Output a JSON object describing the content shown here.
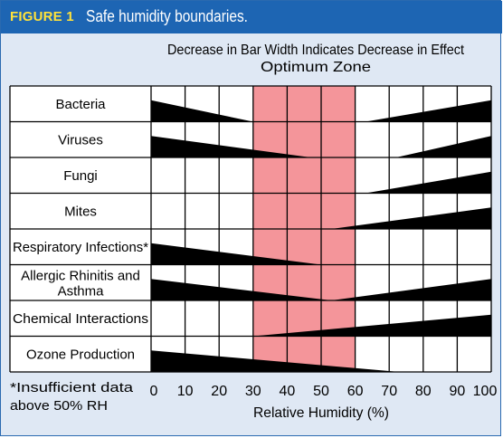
{
  "figure": {
    "label": "FIGURE 1",
    "title": "Safe humidity boundaries."
  },
  "chart_data": {
    "type": "bar",
    "header_lines": [
      "Decrease in Bar Width Indicates Decrease in Effect",
      "Optimum Zone"
    ],
    "xlabel": "Relative Humidity (%)",
    "xlim": [
      0,
      100
    ],
    "xticks": [
      0,
      10,
      20,
      30,
      40,
      50,
      60,
      70,
      80,
      90,
      100
    ],
    "optimum_zone": [
      30,
      60
    ],
    "footnote": [
      "*Insufficient data",
      "above 50% RH"
    ],
    "colors": {
      "bar": "#000000",
      "optimum_zone": "#f4959a",
      "grid": "#000000",
      "title_bar": "#1d65b3",
      "label_highlight": "#ffe23a",
      "background": "#dfe8f4"
    },
    "rows": [
      {
        "label": "Bacteria",
        "segments": [
          {
            "from": 0,
            "to": 30,
            "width_start": 0.6,
            "width_end": 0
          },
          {
            "from": 63,
            "to": 100,
            "width_start": 0,
            "width_end": 0.6
          }
        ]
      },
      {
        "label": "Viruses",
        "segments": [
          {
            "from": 0,
            "to": 47,
            "width_start": 0.6,
            "width_end": 0
          },
          {
            "from": 72,
            "to": 100,
            "width_start": 0,
            "width_end": 0.6
          }
        ]
      },
      {
        "label": "Fungi",
        "segments": [
          {
            "from": 63,
            "to": 100,
            "width_start": 0,
            "width_end": 0.6
          }
        ]
      },
      {
        "label": "Mites",
        "segments": [
          {
            "from": 53,
            "to": 100,
            "width_start": 0,
            "width_end": 0.6
          }
        ]
      },
      {
        "label": "Respiratory Infections*",
        "segments": [
          {
            "from": 0,
            "to": 50,
            "width_start": 0.6,
            "width_end": 0
          }
        ]
      },
      {
        "label": "Allergic Rhinitis and Asthma",
        "segments": [
          {
            "from": 0,
            "to": 53,
            "width_start": 0.6,
            "width_end": 0
          },
          {
            "from": 53,
            "to": 100,
            "width_start": 0,
            "width_end": 0.6
          }
        ]
      },
      {
        "label": "Chemical Interactions",
        "segments": [
          {
            "from": 30,
            "to": 100,
            "width_start": 0,
            "width_end": 0.6
          }
        ]
      },
      {
        "label": "Ozone Production",
        "segments": [
          {
            "from": 0,
            "to": 73,
            "width_start": 0.6,
            "width_end": 0
          }
        ]
      }
    ]
  }
}
